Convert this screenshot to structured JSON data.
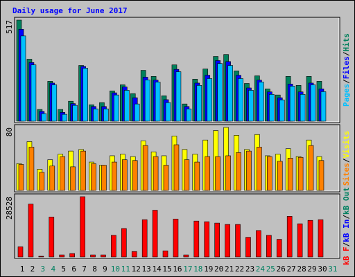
{
  "title": "Daily usage for June 2017",
  "legend_separator": "/",
  "chart_data": [
    {
      "type": "bar",
      "ylim": [
        0,
        517
      ],
      "yticks": [
        517
      ],
      "grid": false,
      "series": [
        {
          "name": "Pages",
          "color": "#00c0ff",
          "values": [
            436,
            288,
            39,
            186,
            35,
            81,
            271,
            63,
            63,
            134,
            158,
            88,
            211,
            200,
            95,
            253,
            63,
            183,
            218,
            295,
            285,
            218,
            158,
            200,
            137,
            109,
            179,
            137,
            186,
            151,
            0
          ]
        },
        {
          "name": "Files",
          "color": "#0000ff",
          "values": [
            470,
            300,
            50,
            195,
            45,
            90,
            280,
            75,
            75,
            145,
            175,
            120,
            225,
            210,
            110,
            265,
            75,
            195,
            235,
            310,
            305,
            235,
            170,
            210,
            150,
            120,
            190,
            150,
            195,
            165,
            0
          ]
        },
        {
          "name": "Hits",
          "color": "#00805c",
          "values": [
            517,
            317,
            60,
            204,
            60,
            102,
            285,
            84,
            95,
            155,
            186,
            141,
            260,
            229,
            130,
            288,
            88,
            215,
            267,
            331,
            341,
            257,
            193,
            232,
            165,
            134,
            229,
            183,
            229,
            204,
            0
          ]
        }
      ]
    },
    {
      "type": "bar",
      "ylim": [
        0,
        80
      ],
      "yticks": [
        80
      ],
      "grid": false,
      "series": [
        {
          "name": "Sites",
          "color": "#ff8000",
          "values": [
            33,
            55,
            23,
            31,
            43,
            30,
            50,
            34,
            32,
            36,
            39,
            38,
            57,
            43,
            32,
            58,
            39,
            36,
            43,
            43,
            44,
            48,
            50,
            55,
            43,
            37,
            41,
            42,
            57,
            38,
            0
          ]
        },
        {
          "name": "Visits",
          "color": "#ffff00",
          "values": [
            34,
            62,
            27,
            39,
            46,
            50,
            52,
            36,
            32,
            44,
            46,
            43,
            63,
            49,
            44,
            69,
            52,
            46,
            64,
            76,
            80,
            70,
            52,
            71,
            44,
            46,
            53,
            43,
            64,
            43,
            0
          ]
        }
      ]
    },
    {
      "type": "bar",
      "ylim": [
        0,
        28528
      ],
      "yticks": [
        28528
      ],
      "grid": false,
      "categories": [
        "1",
        "2",
        "3",
        "4",
        "5",
        "6",
        "7",
        "8",
        "9",
        "10",
        "11",
        "12",
        "13",
        "14",
        "15",
        "16",
        "17",
        "18",
        "19",
        "20",
        "21",
        "22",
        "23",
        "24",
        "25",
        "26",
        "27",
        "28",
        "29",
        "30",
        "31"
      ],
      "category_colors": [
        "#000000",
        "#000000",
        "#008060",
        "#008060",
        "#000000",
        "#000000",
        "#000000",
        "#000000",
        "#000000",
        "#008060",
        "#008060",
        "#000000",
        "#000000",
        "#000000",
        "#000000",
        "#000000",
        "#008060",
        "#008060",
        "#000000",
        "#000000",
        "#000000",
        "#000000",
        "#000000",
        "#008060",
        "#008060",
        "#000000",
        "#000000",
        "#000000",
        "#000000",
        "#000000",
        "#008060"
      ],
      "series": [
        {
          "name": "kB F",
          "color": "#ff0000",
          "values": [
            4808,
            25000,
            320,
            18900,
            960,
            1600,
            28528,
            960,
            960,
            10250,
            13460,
            2560,
            17630,
            22110,
            2880,
            17950,
            960,
            16990,
            16670,
            16030,
            15380,
            15380,
            9290,
            12500,
            10250,
            8330,
            19230,
            15700,
            17310,
            17630,
            0
          ]
        }
      ],
      "legend_extra": [
        {
          "name": "kB In",
          "color": "#0000ff"
        },
        {
          "name": "kB Out",
          "color": "#008060"
        }
      ]
    }
  ]
}
